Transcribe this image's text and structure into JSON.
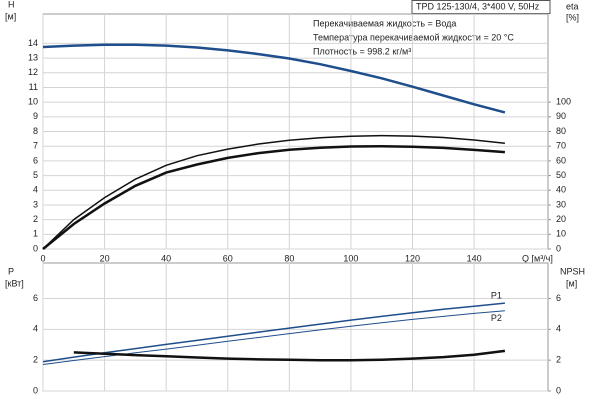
{
  "chart_data": [
    {
      "type": "line",
      "title": "TPD 125-130/4, 3*400 V, 50Hz",
      "annotations": [
        "Перекачиваемая жидкость = Вода",
        "Температура перекачиваемой жидкости = 20 °C",
        "Плотность = 998.2 кг/м³"
      ],
      "ylabel": "H",
      "yunit": "[м]",
      "y2label": "eta",
      "y2unit": "[%]",
      "xlabel": "Q [м³/ч]",
      "x": [
        0,
        10,
        20,
        30,
        40,
        50,
        60,
        70,
        80,
        90,
        100,
        110,
        120,
        130,
        140,
        150
      ],
      "xlim": [
        0,
        164
      ],
      "xticks": [
        0,
        20,
        40,
        60,
        80,
        100,
        120,
        140
      ],
      "xtick_labels": true,
      "ylim": [
        0,
        16
      ],
      "yticks": [
        0,
        1,
        2,
        3,
        4,
        5,
        6,
        7,
        8,
        9,
        10,
        11,
        12,
        13,
        14
      ],
      "y2lim": [
        0,
        160
      ],
      "y2ticks": [
        0,
        10,
        20,
        30,
        40,
        50,
        60,
        70,
        80,
        90,
        100
      ],
      "grid": true,
      "series": [
        {
          "color": "#1f4e8c",
          "width": 2.5,
          "values": [
            13.75,
            13.85,
            13.9,
            13.9,
            13.85,
            13.72,
            13.52,
            13.27,
            12.97,
            12.58,
            12.12,
            11.62,
            11.05,
            10.45,
            9.85,
            9.3
          ]
        },
        {
          "color": "#111111",
          "width": 1.5,
          "axis": "y2",
          "values": [
            0,
            20,
            35,
            47.5,
            57,
            63.5,
            68,
            71.5,
            74,
            75.8,
            76.8,
            77.2,
            76.9,
            75.9,
            74.2,
            72
          ]
        },
        {
          "color": "#111111",
          "width": 2.5,
          "axis": "y2",
          "values": [
            0,
            17,
            31,
            43,
            52,
            57.5,
            62,
            65.3,
            67.6,
            69,
            69.8,
            70,
            69.6,
            68.8,
            67.5,
            66
          ]
        }
      ]
    },
    {
      "type": "line",
      "ylabel": "P",
      "yunit": "[кВт]",
      "y2label": "NPSH",
      "y2unit": "[м]",
      "x": [
        0,
        10,
        20,
        30,
        40,
        50,
        60,
        70,
        80,
        90,
        100,
        110,
        120,
        130,
        140,
        150
      ],
      "xlim": [
        0,
        164
      ],
      "xticks": [
        0,
        20,
        40,
        60,
        80,
        100,
        120,
        140
      ],
      "xtick_labels": false,
      "ylim": [
        0,
        8.3
      ],
      "yticks": [
        0,
        2,
        4,
        6
      ],
      "y2lim": [
        0,
        8.3
      ],
      "y2ticks": [
        0,
        2,
        4,
        6
      ],
      "grid": true,
      "series": [
        {
          "name": "P1",
          "color": "#1f4e8c",
          "width": 1.5,
          "values": [
            1.9,
            2.2,
            2.48,
            2.75,
            3.02,
            3.28,
            3.55,
            3.82,
            4.08,
            4.34,
            4.6,
            4.84,
            5.08,
            5.3,
            5.5,
            5.7
          ]
        },
        {
          "name": "P2",
          "color": "#1f4e8c",
          "width": 1,
          "values": [
            1.72,
            1.98,
            2.23,
            2.48,
            2.72,
            2.97,
            3.22,
            3.47,
            3.72,
            3.96,
            4.2,
            4.42,
            4.64,
            4.84,
            5.03,
            5.2
          ]
        },
        {
          "color": "#111111",
          "width": 2.5,
          "axis": "y2",
          "values": [
            null,
            2.5,
            2.42,
            2.33,
            2.25,
            2.17,
            2.1,
            2.05,
            2.02,
            2.0,
            2.0,
            2.03,
            2.1,
            2.2,
            2.35,
            2.6
          ]
        }
      ]
    }
  ]
}
